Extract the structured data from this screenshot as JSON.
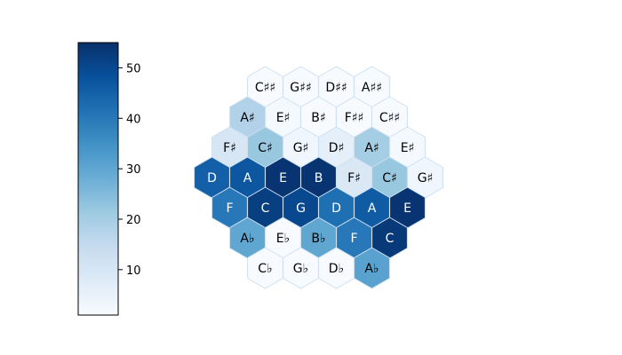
{
  "chart_data": {
    "type": "heatmap",
    "layout": "hexagonal tonnetz",
    "colormap": "Blues",
    "colorbar": {
      "range": [
        1,
        55
      ],
      "ticks": [
        10,
        20,
        30,
        40,
        50
      ]
    },
    "rows": [
      {
        "cells": [
          {
            "label": "C♯♯",
            "value": 1
          },
          {
            "label": "G♯♯",
            "value": 1
          },
          {
            "label": "D♯♯",
            "value": 1
          },
          {
            "label": "A♯♯",
            "value": 1
          }
        ]
      },
      {
        "cells": [
          {
            "label": "A♯",
            "value": 18
          },
          {
            "label": "E♯",
            "value": 2
          },
          {
            "label": "B♯",
            "value": 1
          },
          {
            "label": "F♯♯",
            "value": 1
          },
          {
            "label": "C♯♯",
            "value": 1
          }
        ]
      },
      {
        "cells": [
          {
            "label": "F♯",
            "value": 10
          },
          {
            "label": "C♯",
            "value": 22
          },
          {
            "label": "G♯",
            "value": 3
          },
          {
            "label": "D♯",
            "value": 6
          },
          {
            "label": "A♯",
            "value": 20
          },
          {
            "label": "E♯",
            "value": 2
          }
        ]
      },
      {
        "cells": [
          {
            "label": "D",
            "value": 45
          },
          {
            "label": "A",
            "value": 47
          },
          {
            "label": "E",
            "value": 54
          },
          {
            "label": "B",
            "value": 54
          },
          {
            "label": "F♯",
            "value": 9
          },
          {
            "label": "C♯",
            "value": 22
          },
          {
            "label": "G♯",
            "value": 3
          }
        ]
      },
      {
        "cells": [
          {
            "label": "F",
            "value": 40
          },
          {
            "label": "C",
            "value": 52
          },
          {
            "label": "G",
            "value": 50
          },
          {
            "label": "D",
            "value": 42
          },
          {
            "label": "A",
            "value": 46
          },
          {
            "label": "E",
            "value": 54
          }
        ]
      },
      {
        "cells": [
          {
            "label": "A♭",
            "value": 30
          },
          {
            "label": "E♭",
            "value": 1
          },
          {
            "label": "B♭",
            "value": 30
          },
          {
            "label": "F",
            "value": 40
          },
          {
            "label": "C",
            "value": 53
          }
        ]
      },
      {
        "cells": [
          {
            "label": "C♭",
            "value": 1
          },
          {
            "label": "G♭",
            "value": 1
          },
          {
            "label": "D♭",
            "value": 1
          },
          {
            "label": "A♭",
            "value": 31
          }
        ]
      }
    ]
  }
}
